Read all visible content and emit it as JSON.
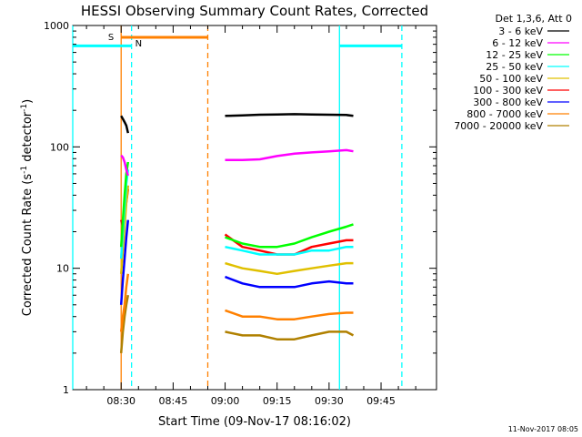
{
  "chart_data": {
    "type": "line",
    "title": "HESSI Observing Summary Count Rates, Corrected",
    "xlabel": "Start Time (09-Nov-17 08:16:02)",
    "ylabel_main": "Corrected Count Rate (s",
    "ylabel_sup1": "-1",
    "ylabel_mid": " detector",
    "ylabel_sup2": "-1",
    "ylabel_end": ")",
    "yscale": "log",
    "ylim": [
      1,
      1000
    ],
    "xlim": [
      "08:16:02",
      "10:01:00"
    ],
    "x_ticks": [
      "08:30",
      "08:45",
      "09:00",
      "09:15",
      "09:30",
      "09:45"
    ],
    "y_ticks": [
      "1",
      "10",
      "100",
      "1000"
    ],
    "legend_title": "Det 1,3,6, Att 0",
    "legend_position": "right",
    "timestamp": "11-Nov-2017 08:05",
    "flags": [
      {
        "label": "S",
        "start": "08:30:00",
        "end": "08:55:00",
        "color": "#ff8000"
      },
      {
        "label": "N",
        "start": "08:30:00",
        "end": "08:33:00",
        "color": "#00ffff"
      }
    ],
    "vlines": [
      {
        "t": "08:16:02",
        "color": "#00ffff",
        "style": "solid"
      },
      {
        "t": "08:33:00",
        "color": "#00ffff",
        "style": "dashed"
      },
      {
        "t": "08:55:00",
        "color": "#ff8000",
        "style": "dashed"
      },
      {
        "t": "09:33:00",
        "color": "#00ffff",
        "style": "solid"
      },
      {
        "t": "09:51:00",
        "color": "#00ffff",
        "style": "dashed"
      },
      {
        "t": "08:30:00",
        "color": "#ff8000",
        "style": "solid"
      }
    ],
    "hlines": [
      {
        "label": "N",
        "value": 680,
        "start": "08:16:02",
        "end": "08:33:00",
        "color": "#00ffff"
      },
      {
        "label": "N",
        "value": 680,
        "start": "09:33:00",
        "end": "09:51:00",
        "color": "#00ffff"
      }
    ],
    "series": [
      {
        "name": "3 - 6 keV",
        "color": "#000000",
        "segments": [
          {
            "x": [
              "08:30:00",
              "08:30:30",
              "08:31:00",
              "08:31:30",
              "08:32:00"
            ],
            "y": [
              180,
              170,
              160,
              150,
              130
            ]
          },
          {
            "x": [
              "09:00:00",
              "09:05:00",
              "09:10:00",
              "09:15:00",
              "09:20:00",
              "09:25:00",
              "09:30:00",
              "09:35:00",
              "09:37:00"
            ],
            "y": [
              180,
              182,
              184,
              185,
              186,
              185,
              184,
              183,
              180
            ]
          }
        ]
      },
      {
        "name": "6 - 12 keV",
        "color": "#ff00ff",
        "segments": [
          {
            "x": [
              "08:30:00",
              "08:30:30",
              "08:31:00",
              "08:31:30",
              "08:32:00"
            ],
            "y": [
              85,
              82,
              75,
              65,
              58
            ]
          },
          {
            "x": [
              "09:00:00",
              "09:05:00",
              "09:10:00",
              "09:15:00",
              "09:20:00",
              "09:25:00",
              "09:30:00",
              "09:35:00",
              "09:37:00"
            ],
            "y": [
              78,
              78,
              79,
              84,
              88,
              90,
              92,
              94,
              92
            ]
          }
        ]
      },
      {
        "name": "12 - 25 keV",
        "color": "#00ff00",
        "segments": [
          {
            "x": [
              "08:30:00",
              "08:30:30",
              "08:31:00",
              "08:31:30",
              "08:32:00"
            ],
            "y": [
              15,
              25,
              40,
              60,
              75
            ]
          },
          {
            "x": [
              "09:00:00",
              "09:05:00",
              "09:10:00",
              "09:15:00",
              "09:20:00",
              "09:25:00",
              "09:30:00",
              "09:35:00",
              "09:37:00"
            ],
            "y": [
              18,
              16,
              15,
              15,
              16,
              18,
              20,
              22,
              23
            ]
          }
        ]
      },
      {
        "name": "25 - 50 keV",
        "color": "#00ffff",
        "segments": [
          {
            "x": [
              "08:30:00",
              "08:30:30",
              "08:31:00",
              "08:31:30",
              "08:32:00"
            ],
            "y": [
              12,
              20,
              32,
              50,
              65
            ]
          },
          {
            "x": [
              "09:00:00",
              "09:05:00",
              "09:10:00",
              "09:15:00",
              "09:20:00",
              "09:25:00",
              "09:30:00",
              "09:35:00",
              "09:37:00"
            ],
            "y": [
              15,
              14,
              13,
              13,
              13,
              14,
              14,
              15,
              15
            ]
          }
        ]
      },
      {
        "name": "50 - 100 keV",
        "color": "#e0c000",
        "segments": [
          {
            "x": [
              "08:30:00",
              "08:30:30",
              "08:31:00",
              "08:31:30",
              "08:32:00"
            ],
            "y": [
              9,
              14,
              22,
              35,
              48
            ]
          },
          {
            "x": [
              "09:00:00",
              "09:05:00",
              "09:10:00",
              "09:15:00",
              "09:20:00",
              "09:25:00",
              "09:30:00",
              "09:35:00",
              "09:37:00"
            ],
            "y": [
              11,
              10,
              9.5,
              9,
              9.5,
              10,
              10.5,
              11,
              11
            ]
          }
        ]
      },
      {
        "name": "100 - 300 keV",
        "color": "#ff0000",
        "segments": [
          {
            "x": [
              "08:30:00",
              "08:30:30",
              "08:31:00",
              "08:31:30",
              "08:32:00"
            ],
            "y": [
              25,
              22,
              28,
              35,
              45
            ]
          },
          {
            "x": [
              "09:00:00",
              "09:05:00",
              "09:10:00",
              "09:15:00",
              "09:20:00",
              "09:25:00",
              "09:30:00",
              "09:35:00",
              "09:37:00"
            ],
            "y": [
              19,
              15,
              14,
              13,
              13,
              15,
              16,
              17,
              17
            ]
          }
        ]
      },
      {
        "name": "300 - 800 keV",
        "color": "#0000ff",
        "segments": [
          {
            "x": [
              "08:30:00",
              "08:30:30",
              "08:31:00",
              "08:31:30",
              "08:32:00"
            ],
            "y": [
              5,
              8,
              12,
              18,
              25
            ]
          },
          {
            "x": [
              "09:00:00",
              "09:05:00",
              "09:10:00",
              "09:15:00",
              "09:20:00",
              "09:25:00",
              "09:30:00",
              "09:35:00",
              "09:37:00"
            ],
            "y": [
              8.5,
              7.5,
              7,
              7,
              7,
              7.5,
              7.8,
              7.5,
              7.5
            ]
          }
        ]
      },
      {
        "name": "800 - 7000 keV",
        "color": "#ff8000",
        "segments": [
          {
            "x": [
              "08:30:00",
              "08:30:30",
              "08:31:00",
              "08:31:30",
              "08:32:00"
            ],
            "y": [
              3,
              4,
              5,
              7,
              9
            ]
          },
          {
            "x": [
              "09:00:00",
              "09:05:00",
              "09:10:00",
              "09:15:00",
              "09:20:00",
              "09:25:00",
              "09:30:00",
              "09:35:00",
              "09:37:00"
            ],
            "y": [
              4.5,
              4,
              4,
              3.8,
              3.8,
              4,
              4.2,
              4.3,
              4.3
            ]
          }
        ]
      },
      {
        "name": "7000 - 20000 keV",
        "color": "#b08000",
        "segments": [
          {
            "x": [
              "08:30:00",
              "08:30:30",
              "08:31:00",
              "08:31:30",
              "08:32:00"
            ],
            "y": [
              2,
              3,
              4,
              5,
              6
            ]
          },
          {
            "x": [
              "09:00:00",
              "09:05:00",
              "09:10:00",
              "09:15:00",
              "09:20:00",
              "09:25:00",
              "09:30:00",
              "09:35:00",
              "09:37:00"
            ],
            "y": [
              3,
              2.8,
              2.8,
              2.6,
              2.6,
              2.8,
              3,
              3,
              2.8
            ]
          }
        ]
      }
    ]
  }
}
